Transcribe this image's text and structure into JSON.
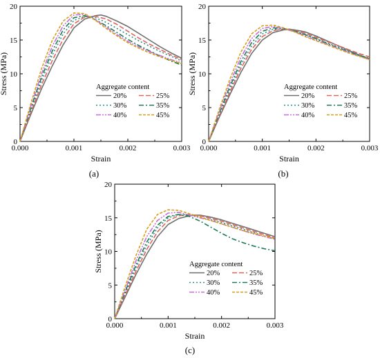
{
  "figure": {
    "panel_labels": [
      "(a)",
      "(b)",
      "(c)"
    ]
  },
  "chart_data": [
    {
      "type": "line",
      "panel": "(a)",
      "xlabel": "Strain",
      "ylabel": "Stress (MPa)",
      "xlim": [
        0,
        0.003
      ],
      "ylim": [
        0,
        20
      ],
      "xticks": [
        "0.000",
        "0.001",
        "0.002",
        "0.003"
      ],
      "yticks": [
        "0",
        "5",
        "10",
        "15",
        "20"
      ],
      "legend_title": "Aggregate content",
      "legend_position": "lower-right",
      "grid": false,
      "series": [
        {
          "name": "20%",
          "color": "#707070",
          "dash": "solid",
          "x": [
            0,
            0.0002,
            0.0004,
            0.0006,
            0.0008,
            0.001,
            0.0012,
            0.0014,
            0.0015,
            0.0016,
            0.0018,
            0.002,
            0.0022,
            0.0024,
            0.0026,
            0.0028,
            0.003
          ],
          "y": [
            0,
            4.0,
            7.8,
            11.2,
            14.3,
            16.8,
            18.1,
            18.6,
            18.7,
            18.5,
            17.8,
            17.0,
            16.0,
            15.0,
            14.0,
            13.1,
            12.3
          ]
        },
        {
          "name": "25%",
          "color": "#e0645a",
          "dash": "long",
          "x": [
            0,
            0.0002,
            0.0004,
            0.0006,
            0.0008,
            0.001,
            0.0012,
            0.0014,
            0.0016,
            0.0018,
            0.002,
            0.0022,
            0.0024,
            0.0026,
            0.0028,
            0.003
          ],
          "y": [
            0,
            4.3,
            8.4,
            12.0,
            15.1,
            17.4,
            18.4,
            18.5,
            18.1,
            17.3,
            16.3,
            15.3,
            14.4,
            13.6,
            12.8,
            12.1
          ]
        },
        {
          "name": "30%",
          "color": "#2e8b8b",
          "dash": "dot",
          "x": [
            0,
            0.0002,
            0.0004,
            0.0006,
            0.0008,
            0.001,
            0.0012,
            0.0014,
            0.0016,
            0.0018,
            0.002,
            0.0022,
            0.0024,
            0.0026,
            0.0028,
            0.003
          ],
          "y": [
            0,
            4.6,
            9.0,
            12.8,
            15.9,
            17.9,
            18.5,
            18.3,
            17.6,
            16.7,
            15.8,
            14.9,
            14.1,
            13.3,
            12.6,
            11.9
          ]
        },
        {
          "name": "35%",
          "color": "#1a7a50",
          "dash": "dashdot",
          "x": [
            0,
            0.0002,
            0.0004,
            0.0006,
            0.0008,
            0.001,
            0.0012,
            0.0014,
            0.0016,
            0.0018,
            0.002,
            0.0022,
            0.0024,
            0.0026,
            0.0028,
            0.003
          ],
          "y": [
            0,
            4.9,
            9.5,
            13.4,
            16.5,
            18.3,
            18.6,
            18.0,
            17.1,
            16.1,
            15.1,
            14.2,
            13.4,
            12.6,
            11.9,
            11.3
          ]
        },
        {
          "name": "40%",
          "color": "#c86ad8",
          "dash": "dashdotdot",
          "x": [
            0,
            0.0002,
            0.0004,
            0.0006,
            0.0008,
            0.001,
            0.0012,
            0.0014,
            0.0016,
            0.0018,
            0.002,
            0.0022,
            0.0024,
            0.0026,
            0.0028,
            0.003
          ],
          "y": [
            0,
            5.2,
            10.0,
            14.1,
            17.1,
            18.7,
            18.8,
            18.0,
            16.9,
            15.8,
            14.8,
            14.0,
            13.3,
            12.7,
            12.1,
            11.6
          ]
        },
        {
          "name": "45%",
          "color": "#d4a017",
          "dash": "short",
          "x": [
            0,
            0.0002,
            0.0004,
            0.0006,
            0.0008,
            0.001,
            0.0012,
            0.0014,
            0.0016,
            0.0018,
            0.002,
            0.0022,
            0.0024,
            0.0026,
            0.0028,
            0.003
          ],
          "y": [
            0,
            5.6,
            10.8,
            15.0,
            17.8,
            19.0,
            18.9,
            17.9,
            16.7,
            15.6,
            14.6,
            13.8,
            13.1,
            12.5,
            12.0,
            11.5
          ]
        }
      ]
    },
    {
      "type": "line",
      "panel": "(b)",
      "xlabel": "Strain",
      "ylabel": "Stress (MPa)",
      "xlim": [
        0,
        0.003
      ],
      "ylim": [
        0,
        20
      ],
      "xticks": [
        "0.000",
        "0.001",
        "0.002",
        "0.003"
      ],
      "yticks": [
        "0",
        "5",
        "10",
        "15",
        "20"
      ],
      "legend_title": "Aggregate content",
      "legend_position": "lower-right",
      "grid": false,
      "series": [
        {
          "name": "20%",
          "color": "#707070",
          "dash": "solid",
          "x": [
            0,
            0.0002,
            0.0004,
            0.0006,
            0.0008,
            0.001,
            0.0012,
            0.0014,
            0.0015,
            0.0016,
            0.0018,
            0.002,
            0.0022,
            0.0024,
            0.0026,
            0.0028,
            0.003
          ],
          "y": [
            0,
            3.6,
            7.0,
            10.2,
            13.0,
            15.0,
            16.1,
            16.5,
            16.6,
            16.5,
            16.2,
            15.6,
            14.9,
            14.2,
            13.5,
            12.8,
            12.2
          ]
        },
        {
          "name": "25%",
          "color": "#e0645a",
          "dash": "long",
          "x": [
            0,
            0.0002,
            0.0004,
            0.0006,
            0.0008,
            0.001,
            0.0012,
            0.0014,
            0.0016,
            0.0018,
            0.002,
            0.0022,
            0.0024,
            0.0026,
            0.0028,
            0.003
          ],
          "y": [
            0,
            3.8,
            7.4,
            10.8,
            13.6,
            15.5,
            16.4,
            16.6,
            16.4,
            16.0,
            15.4,
            14.8,
            14.2,
            13.6,
            13.0,
            12.5
          ]
        },
        {
          "name": "30%",
          "color": "#2e8b8b",
          "dash": "dot",
          "x": [
            0,
            0.0002,
            0.0004,
            0.0006,
            0.0008,
            0.001,
            0.0012,
            0.0014,
            0.0016,
            0.0018,
            0.002,
            0.0022,
            0.0024,
            0.0026,
            0.0028,
            0.003
          ],
          "y": [
            0,
            4.0,
            7.8,
            11.3,
            14.1,
            15.9,
            16.6,
            16.6,
            16.3,
            15.8,
            15.2,
            14.6,
            14.0,
            13.4,
            12.8,
            12.3
          ]
        },
        {
          "name": "35%",
          "color": "#1a7a50",
          "dash": "dashdot",
          "x": [
            0,
            0.0002,
            0.0004,
            0.0006,
            0.0008,
            0.001,
            0.0012,
            0.0014,
            0.0016,
            0.0018,
            0.002,
            0.0022,
            0.0024,
            0.0026,
            0.0028,
            0.003
          ],
          "y": [
            0,
            4.2,
            8.2,
            11.8,
            14.6,
            16.3,
            16.8,
            16.7,
            16.3,
            15.8,
            15.2,
            14.5,
            13.9,
            13.3,
            12.7,
            12.2
          ]
        },
        {
          "name": "40%",
          "color": "#c86ad8",
          "dash": "dashdotdot",
          "x": [
            0,
            0.0002,
            0.0004,
            0.0006,
            0.0008,
            0.001,
            0.0012,
            0.0014,
            0.0016,
            0.0018,
            0.002,
            0.0022,
            0.0024,
            0.0026,
            0.0028,
            0.003
          ],
          "y": [
            0,
            4.5,
            8.7,
            12.4,
            15.2,
            16.7,
            17.0,
            16.7,
            16.2,
            15.6,
            15.0,
            14.4,
            13.8,
            13.2,
            12.6,
            12.1
          ]
        },
        {
          "name": "45%",
          "color": "#d4a017",
          "dash": "short",
          "x": [
            0,
            0.0002,
            0.0004,
            0.0006,
            0.0008,
            0.001,
            0.0012,
            0.0014,
            0.0016,
            0.0018,
            0.002,
            0.0022,
            0.0024,
            0.0026,
            0.0028,
            0.003
          ],
          "y": [
            0,
            4.8,
            9.3,
            13.2,
            15.9,
            17.1,
            17.2,
            16.8,
            16.2,
            15.5,
            14.9,
            14.3,
            13.7,
            13.1,
            12.6,
            12.1
          ]
        }
      ]
    },
    {
      "type": "line",
      "panel": "(c)",
      "xlabel": "Strain",
      "ylabel": "Stress (MPa)",
      "xlim": [
        0,
        0.003
      ],
      "ylim": [
        0,
        20
      ],
      "xticks": [
        "0.000",
        "0.001",
        "0.002",
        "0.003"
      ],
      "yticks": [
        "0",
        "5",
        "10",
        "15",
        "20"
      ],
      "legend_title": "Aggregate content",
      "legend_position": "lower-right",
      "grid": false,
      "series": [
        {
          "name": "20%",
          "color": "#707070",
          "dash": "solid",
          "x": [
            0,
            0.0002,
            0.0004,
            0.0006,
            0.0008,
            0.001,
            0.0012,
            0.0014,
            0.0015,
            0.0016,
            0.0018,
            0.002,
            0.0022,
            0.0024,
            0.0026,
            0.0028,
            0.003
          ],
          "y": [
            0,
            3.3,
            6.6,
            9.6,
            12.2,
            14.0,
            14.9,
            15.3,
            15.4,
            15.4,
            15.1,
            14.7,
            14.2,
            13.7,
            13.2,
            12.7,
            12.2
          ]
        },
        {
          "name": "25%",
          "color": "#e0645a",
          "dash": "long",
          "x": [
            0,
            0.0002,
            0.0004,
            0.0006,
            0.0008,
            0.001,
            0.0012,
            0.0014,
            0.0016,
            0.0018,
            0.002,
            0.0022,
            0.0024,
            0.0026,
            0.0028,
            0.003
          ],
          "y": [
            0,
            3.6,
            7.1,
            10.3,
            12.9,
            14.6,
            15.3,
            15.5,
            15.3,
            14.9,
            14.5,
            14.0,
            13.5,
            13.0,
            12.5,
            12.0
          ]
        },
        {
          "name": "30%",
          "color": "#2e8b8b",
          "dash": "dot",
          "x": [
            0,
            0.0002,
            0.0004,
            0.0006,
            0.0008,
            0.001,
            0.0012,
            0.0014,
            0.0016,
            0.0018,
            0.002,
            0.0022,
            0.0024,
            0.0026,
            0.0028,
            0.003
          ],
          "y": [
            0,
            3.9,
            7.6,
            10.9,
            13.5,
            15.0,
            15.5,
            15.4,
            15.1,
            14.7,
            14.3,
            13.8,
            13.3,
            12.8,
            12.3,
            11.9
          ]
        },
        {
          "name": "35%",
          "color": "#1a7a50",
          "dash": "dashdot",
          "x": [
            0,
            0.0002,
            0.0004,
            0.0006,
            0.0008,
            0.001,
            0.0012,
            0.0014,
            0.0016,
            0.0018,
            0.002,
            0.0022,
            0.0024,
            0.0026,
            0.0028,
            0.003
          ],
          "y": [
            0,
            4.1,
            8.0,
            11.4,
            13.9,
            15.2,
            15.5,
            15.2,
            14.5,
            13.6,
            12.7,
            11.9,
            11.3,
            10.8,
            10.4,
            10.1
          ]
        },
        {
          "name": "40%",
          "color": "#c86ad8",
          "dash": "dashdotdot",
          "x": [
            0,
            0.0002,
            0.0004,
            0.0006,
            0.0008,
            0.001,
            0.0012,
            0.0014,
            0.0016,
            0.0018,
            0.002,
            0.0022,
            0.0024,
            0.0026,
            0.0028,
            0.003
          ],
          "y": [
            0,
            4.4,
            8.6,
            12.2,
            14.6,
            15.7,
            15.8,
            15.4,
            15.0,
            14.6,
            14.1,
            13.6,
            13.1,
            12.6,
            12.2,
            11.8
          ]
        },
        {
          "name": "45%",
          "color": "#d4a017",
          "dash": "short",
          "x": [
            0,
            0.0002,
            0.0004,
            0.0006,
            0.0008,
            0.001,
            0.0012,
            0.0014,
            0.0016,
            0.0018,
            0.002,
            0.0022,
            0.0024,
            0.0026,
            0.0028,
            0.003
          ],
          "y": [
            0,
            4.9,
            9.4,
            13.3,
            15.5,
            16.2,
            16.1,
            15.6,
            15.1,
            14.6,
            14.1,
            13.6,
            13.1,
            12.7,
            12.3,
            11.9
          ]
        }
      ]
    }
  ]
}
